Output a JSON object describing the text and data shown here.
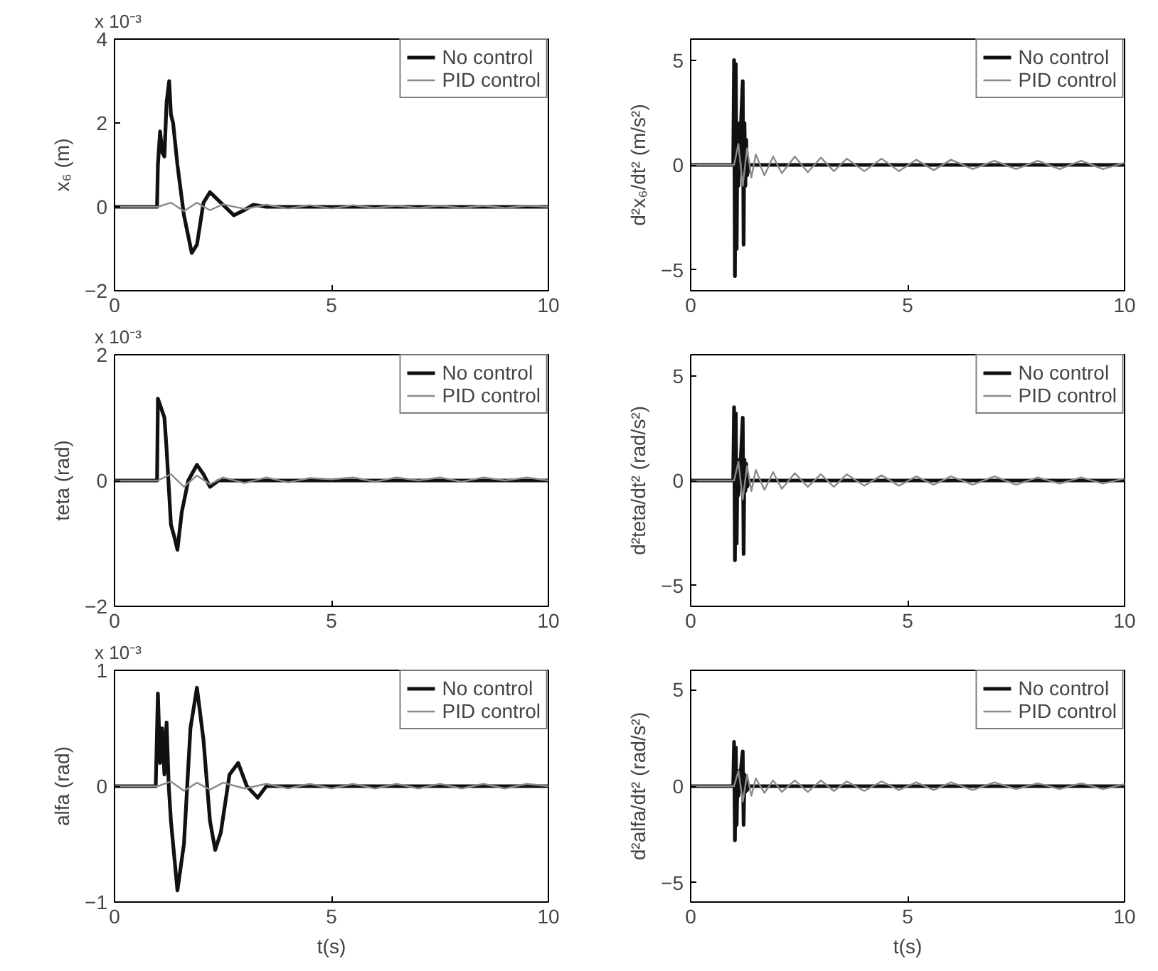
{
  "chart_data": [
    {
      "type": "line",
      "ylabel": "x₆ (m)",
      "annotations": [
        "x 10⁻³"
      ],
      "xlim": [
        0,
        10
      ],
      "xticks": [
        0,
        5,
        10
      ],
      "ylim": [
        -2,
        4
      ],
      "yticks": [
        -2,
        0,
        2,
        4
      ],
      "legend": "top right",
      "grid": false,
      "series": [
        {
          "name": "No control",
          "color": "#111111",
          "x": [
            0,
            0.98,
            1.0,
            1.05,
            1.1,
            1.15,
            1.2,
            1.26,
            1.3,
            1.35,
            1.45,
            1.6,
            1.78,
            1.9,
            2.05,
            2.2,
            2.45,
            2.75,
            2.95,
            3.2,
            3.5,
            10
          ],
          "values": [
            0,
            0,
            1.0,
            1.8,
            1.3,
            1.2,
            2.5,
            3.0,
            2.2,
            2.0,
            1.0,
            -0.2,
            -1.1,
            -0.9,
            0.1,
            0.35,
            0.1,
            -0.2,
            -0.1,
            0.05,
            0,
            0
          ]
        },
        {
          "name": "PID control",
          "color": "#8a8a8a",
          "x": [
            0,
            1.0,
            1.3,
            1.6,
            1.9,
            2.2,
            2.5,
            3,
            3.5,
            4,
            4.5,
            5,
            5.5,
            6,
            6.5,
            7,
            7.5,
            8,
            8.5,
            9,
            9.5,
            10
          ],
          "values": [
            0,
            0,
            0.1,
            -0.1,
            0.1,
            -0.08,
            0.06,
            -0.05,
            0.05,
            -0.04,
            0.04,
            -0.04,
            0.04,
            -0.03,
            0.03,
            -0.03,
            0.03,
            -0.03,
            0.03,
            -0.03,
            0.03,
            0
          ]
        }
      ]
    },
    {
      "type": "line",
      "ylabel": "d²x₆/dt² (m/s²)",
      "xlim": [
        0,
        10
      ],
      "xticks": [
        0,
        5,
        10
      ],
      "ylim": [
        -6,
        6
      ],
      "yticks": [
        -5,
        0,
        5
      ],
      "legend": "top right",
      "grid": false,
      "series": [
        {
          "name": "No control",
          "color": "#111111",
          "x": [
            0,
            0.98,
            1.0,
            1.02,
            1.04,
            1.06,
            1.08,
            1.1,
            1.15,
            1.2,
            1.22,
            1.24,
            1.26,
            1.28,
            1.3,
            1.35,
            10
          ],
          "values": [
            0,
            0,
            5,
            -5.3,
            4.8,
            -4,
            2,
            -1,
            1.5,
            4,
            -3.8,
            2,
            -1,
            1.2,
            -0.5,
            0,
            0
          ]
        },
        {
          "name": "PID control",
          "color": "#8a8a8a",
          "x": [
            0,
            1.0,
            1.1,
            1.2,
            1.3,
            1.4,
            1.5,
            1.7,
            1.9,
            2.1,
            2.4,
            2.7,
            3,
            3.3,
            3.6,
            4,
            4.4,
            4.8,
            5.2,
            5.6,
            6,
            6.5,
            7,
            7.5,
            8,
            8.5,
            9,
            9.5,
            10
          ],
          "values": [
            0,
            0,
            1,
            -1,
            0.8,
            -0.6,
            0.5,
            -0.5,
            0.4,
            -0.4,
            0.4,
            -0.35,
            0.35,
            -0.3,
            0.3,
            -0.3,
            0.3,
            -0.3,
            0.25,
            -0.25,
            0.25,
            -0.2,
            0.2,
            -0.2,
            0.2,
            -0.2,
            0.2,
            -0.2,
            0.1
          ]
        }
      ]
    },
    {
      "type": "line",
      "ylabel": "teta (rad)",
      "annotations": [
        "x 10⁻³"
      ],
      "xlim": [
        0,
        10
      ],
      "xticks": [
        0,
        5,
        10
      ],
      "ylim": [
        -2,
        2
      ],
      "yticks": [
        -2,
        0,
        2
      ],
      "legend": "top right",
      "grid": false,
      "series": [
        {
          "name": "No control",
          "color": "#111111",
          "x": [
            0,
            0.98,
            1.0,
            1.05,
            1.1,
            1.15,
            1.2,
            1.3,
            1.38,
            1.45,
            1.55,
            1.7,
            1.9,
            2.05,
            2.2,
            2.4,
            10
          ],
          "values": [
            0,
            0,
            1.3,
            1.2,
            1.1,
            1.0,
            0.5,
            -0.7,
            -0.9,
            -1.1,
            -0.5,
            0,
            0.25,
            0.1,
            -0.1,
            0,
            0
          ]
        },
        {
          "name": "PID control",
          "color": "#8a8a8a",
          "x": [
            0,
            1.0,
            1.3,
            1.6,
            1.9,
            2.2,
            2.5,
            3,
            3.5,
            4,
            4.5,
            5,
            5.5,
            6,
            6.5,
            7,
            7.5,
            8,
            8.5,
            9,
            9.5,
            10
          ],
          "values": [
            0,
            0,
            0.1,
            -0.1,
            0.08,
            -0.06,
            0.05,
            -0.04,
            0.05,
            -0.03,
            0.04,
            0.02,
            0.05,
            -0.02,
            0.05,
            0.0,
            0.05,
            -0.02,
            0.05,
            0.0,
            0.05,
            0
          ]
        }
      ]
    },
    {
      "type": "line",
      "ylabel": "d²teta/dt² (rad/s²)",
      "xlim": [
        0,
        10
      ],
      "xticks": [
        0,
        5,
        10
      ],
      "ylim": [
        -6,
        6
      ],
      "yticks": [
        -5,
        0,
        5
      ],
      "legend": "top right",
      "grid": false,
      "series": [
        {
          "name": "No control",
          "color": "#111111",
          "x": [
            0,
            0.98,
            1.0,
            1.02,
            1.04,
            1.06,
            1.08,
            1.1,
            1.15,
            1.2,
            1.22,
            1.24,
            1.26,
            1.28,
            1.3,
            1.35,
            10
          ],
          "values": [
            0,
            0,
            3.5,
            -3.8,
            3.2,
            -3,
            1,
            -0.7,
            0.8,
            3,
            -3.5,
            1,
            -0.5,
            0.8,
            -0.3,
            0,
            0
          ]
        },
        {
          "name": "PID control",
          "color": "#8a8a8a",
          "x": [
            0,
            1.0,
            1.1,
            1.2,
            1.3,
            1.4,
            1.5,
            1.7,
            1.9,
            2.1,
            2.4,
            2.7,
            3,
            3.3,
            3.6,
            4,
            4.4,
            4.8,
            5.2,
            5.6,
            6,
            6.5,
            7,
            7.5,
            8,
            8.5,
            9,
            9.5,
            10
          ],
          "values": [
            0,
            0,
            0.9,
            -0.9,
            0.7,
            -0.5,
            0.5,
            -0.45,
            0.4,
            -0.4,
            0.35,
            -0.3,
            0.3,
            -0.3,
            0.3,
            -0.25,
            0.25,
            -0.25,
            0.2,
            -0.2,
            0.2,
            -0.2,
            0.2,
            -0.2,
            0.15,
            -0.15,
            0.15,
            -0.15,
            0.1
          ]
        }
      ]
    },
    {
      "type": "line",
      "ylabel": "alfa (rad)",
      "xlabel": "t(s)",
      "annotations": [
        "x 10⁻³"
      ],
      "xlim": [
        0,
        10
      ],
      "xticks": [
        0,
        5,
        10
      ],
      "ylim": [
        -1,
        1
      ],
      "yticks": [
        -1,
        0,
        1
      ],
      "legend": "top right",
      "grid": false,
      "series": [
        {
          "name": "No control",
          "color": "#111111",
          "x": [
            0,
            0.95,
            1.0,
            1.05,
            1.1,
            1.15,
            1.2,
            1.25,
            1.3,
            1.45,
            1.6,
            1.75,
            1.9,
            2.05,
            2.2,
            2.32,
            2.45,
            2.65,
            2.85,
            3.05,
            3.3,
            3.5,
            10
          ],
          "values": [
            0,
            0,
            0.8,
            0.2,
            0.5,
            0.1,
            0.55,
            0.0,
            -0.3,
            -0.9,
            -0.5,
            0.5,
            0.85,
            0.4,
            -0.3,
            -0.55,
            -0.4,
            0.1,
            0.2,
            0,
            -0.1,
            0,
            0
          ]
        },
        {
          "name": "PID control",
          "color": "#8a8a8a",
          "x": [
            0,
            1.0,
            1.3,
            1.6,
            1.9,
            2.2,
            2.5,
            3,
            3.5,
            4,
            4.5,
            5,
            5.5,
            6,
            6.5,
            7,
            7.5,
            8,
            8.5,
            9,
            9.5,
            10
          ],
          "values": [
            0,
            0,
            0.04,
            -0.04,
            0.03,
            -0.03,
            0.03,
            -0.02,
            0.02,
            -0.02,
            0.02,
            -0.02,
            0.02,
            -0.02,
            0.02,
            -0.02,
            0.02,
            -0.02,
            0.02,
            -0.02,
            0.02,
            0
          ]
        }
      ]
    },
    {
      "type": "line",
      "ylabel": "d²alfa/dt² (rad/s²)",
      "xlabel": "t(s)",
      "xlim": [
        0,
        10
      ],
      "xticks": [
        0,
        5,
        10
      ],
      "ylim": [
        -6,
        6
      ],
      "yticks": [
        -5,
        0,
        5
      ],
      "legend": "top right",
      "grid": false,
      "series": [
        {
          "name": "No control",
          "color": "#111111",
          "x": [
            0,
            0.98,
            1.0,
            1.02,
            1.04,
            1.06,
            1.08,
            1.1,
            1.15,
            1.2,
            1.22,
            1.24,
            1.26,
            1.28,
            1.3,
            1.35,
            10
          ],
          "values": [
            0,
            0,
            2.3,
            -2.8,
            2,
            -2,
            0.8,
            -0.5,
            0.7,
            1.8,
            -2,
            0.6,
            -0.3,
            0.5,
            -0.2,
            0,
            0
          ]
        },
        {
          "name": "PID control",
          "color": "#8a8a8a",
          "x": [
            0,
            1.0,
            1.1,
            1.2,
            1.3,
            1.4,
            1.5,
            1.7,
            1.9,
            2.1,
            2.4,
            2.7,
            3,
            3.3,
            3.6,
            4,
            4.4,
            4.8,
            5.2,
            5.6,
            6,
            6.5,
            7,
            7.5,
            8,
            8.5,
            9,
            9.5,
            10
          ],
          "values": [
            0,
            0,
            0.8,
            -0.8,
            0.6,
            -0.5,
            0.4,
            -0.35,
            0.3,
            -0.3,
            0.3,
            -0.3,
            0.3,
            -0.25,
            0.25,
            -0.25,
            0.25,
            -0.2,
            0.2,
            -0.2,
            0.2,
            -0.2,
            0.2,
            -0.15,
            0.15,
            -0.15,
            0.15,
            -0.15,
            0.1
          ]
        }
      ]
    }
  ]
}
